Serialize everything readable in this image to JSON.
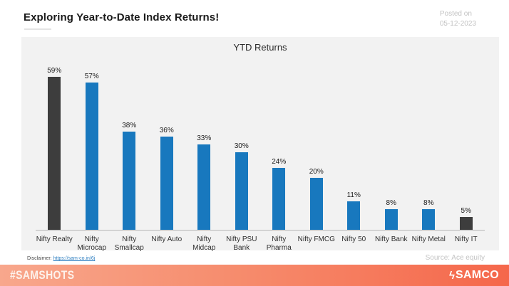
{
  "header": {
    "title": "Exploring Year-to-Date Index Returns!",
    "posted_label": "Posted on",
    "posted_date": "05-12-2023"
  },
  "chart_data": {
    "type": "bar",
    "title": "YTD Returns",
    "categories": [
      "Nifty Realty",
      "Nifty\nMicrocap",
      "Nifty\nSmallcap",
      "Nifty Auto",
      "Nifty Midcap",
      "Nifty PSU\nBank",
      "Nifty Pharma",
      "Nifty FMCG",
      "Nifty 50",
      "Nifty Bank",
      "Nifty Metal",
      "Nifty IT"
    ],
    "values": [
      59,
      57,
      38,
      36,
      33,
      30,
      24,
      20,
      11,
      8,
      8,
      5
    ],
    "value_labels": [
      "59%",
      "57%",
      "38%",
      "36%",
      "33%",
      "30%",
      "24%",
      "20%",
      "11%",
      "8%",
      "8%",
      "5%"
    ],
    "xlabel": "",
    "ylabel": "",
    "ylim": [
      0,
      66
    ],
    "grid": false,
    "legend": "none",
    "bar_color_default": "#1878be",
    "bar_color_highlight": "#3d3d3d",
    "highlight_indices": [
      0,
      11
    ],
    "panel_background": "#f2f2f2"
  },
  "footnotes": {
    "disclaimer_label": "Disclaimer: ",
    "disclaimer_link": "https://sam-co.in/6j",
    "source": "Source: Ace equity"
  },
  "footer": {
    "hashtag": "#SAMSHOTS",
    "brand": "SAMCO",
    "brand_icon_glyph": "ϟ",
    "gradient_start": "#f8a78c",
    "gradient_end": "#f5674b"
  }
}
